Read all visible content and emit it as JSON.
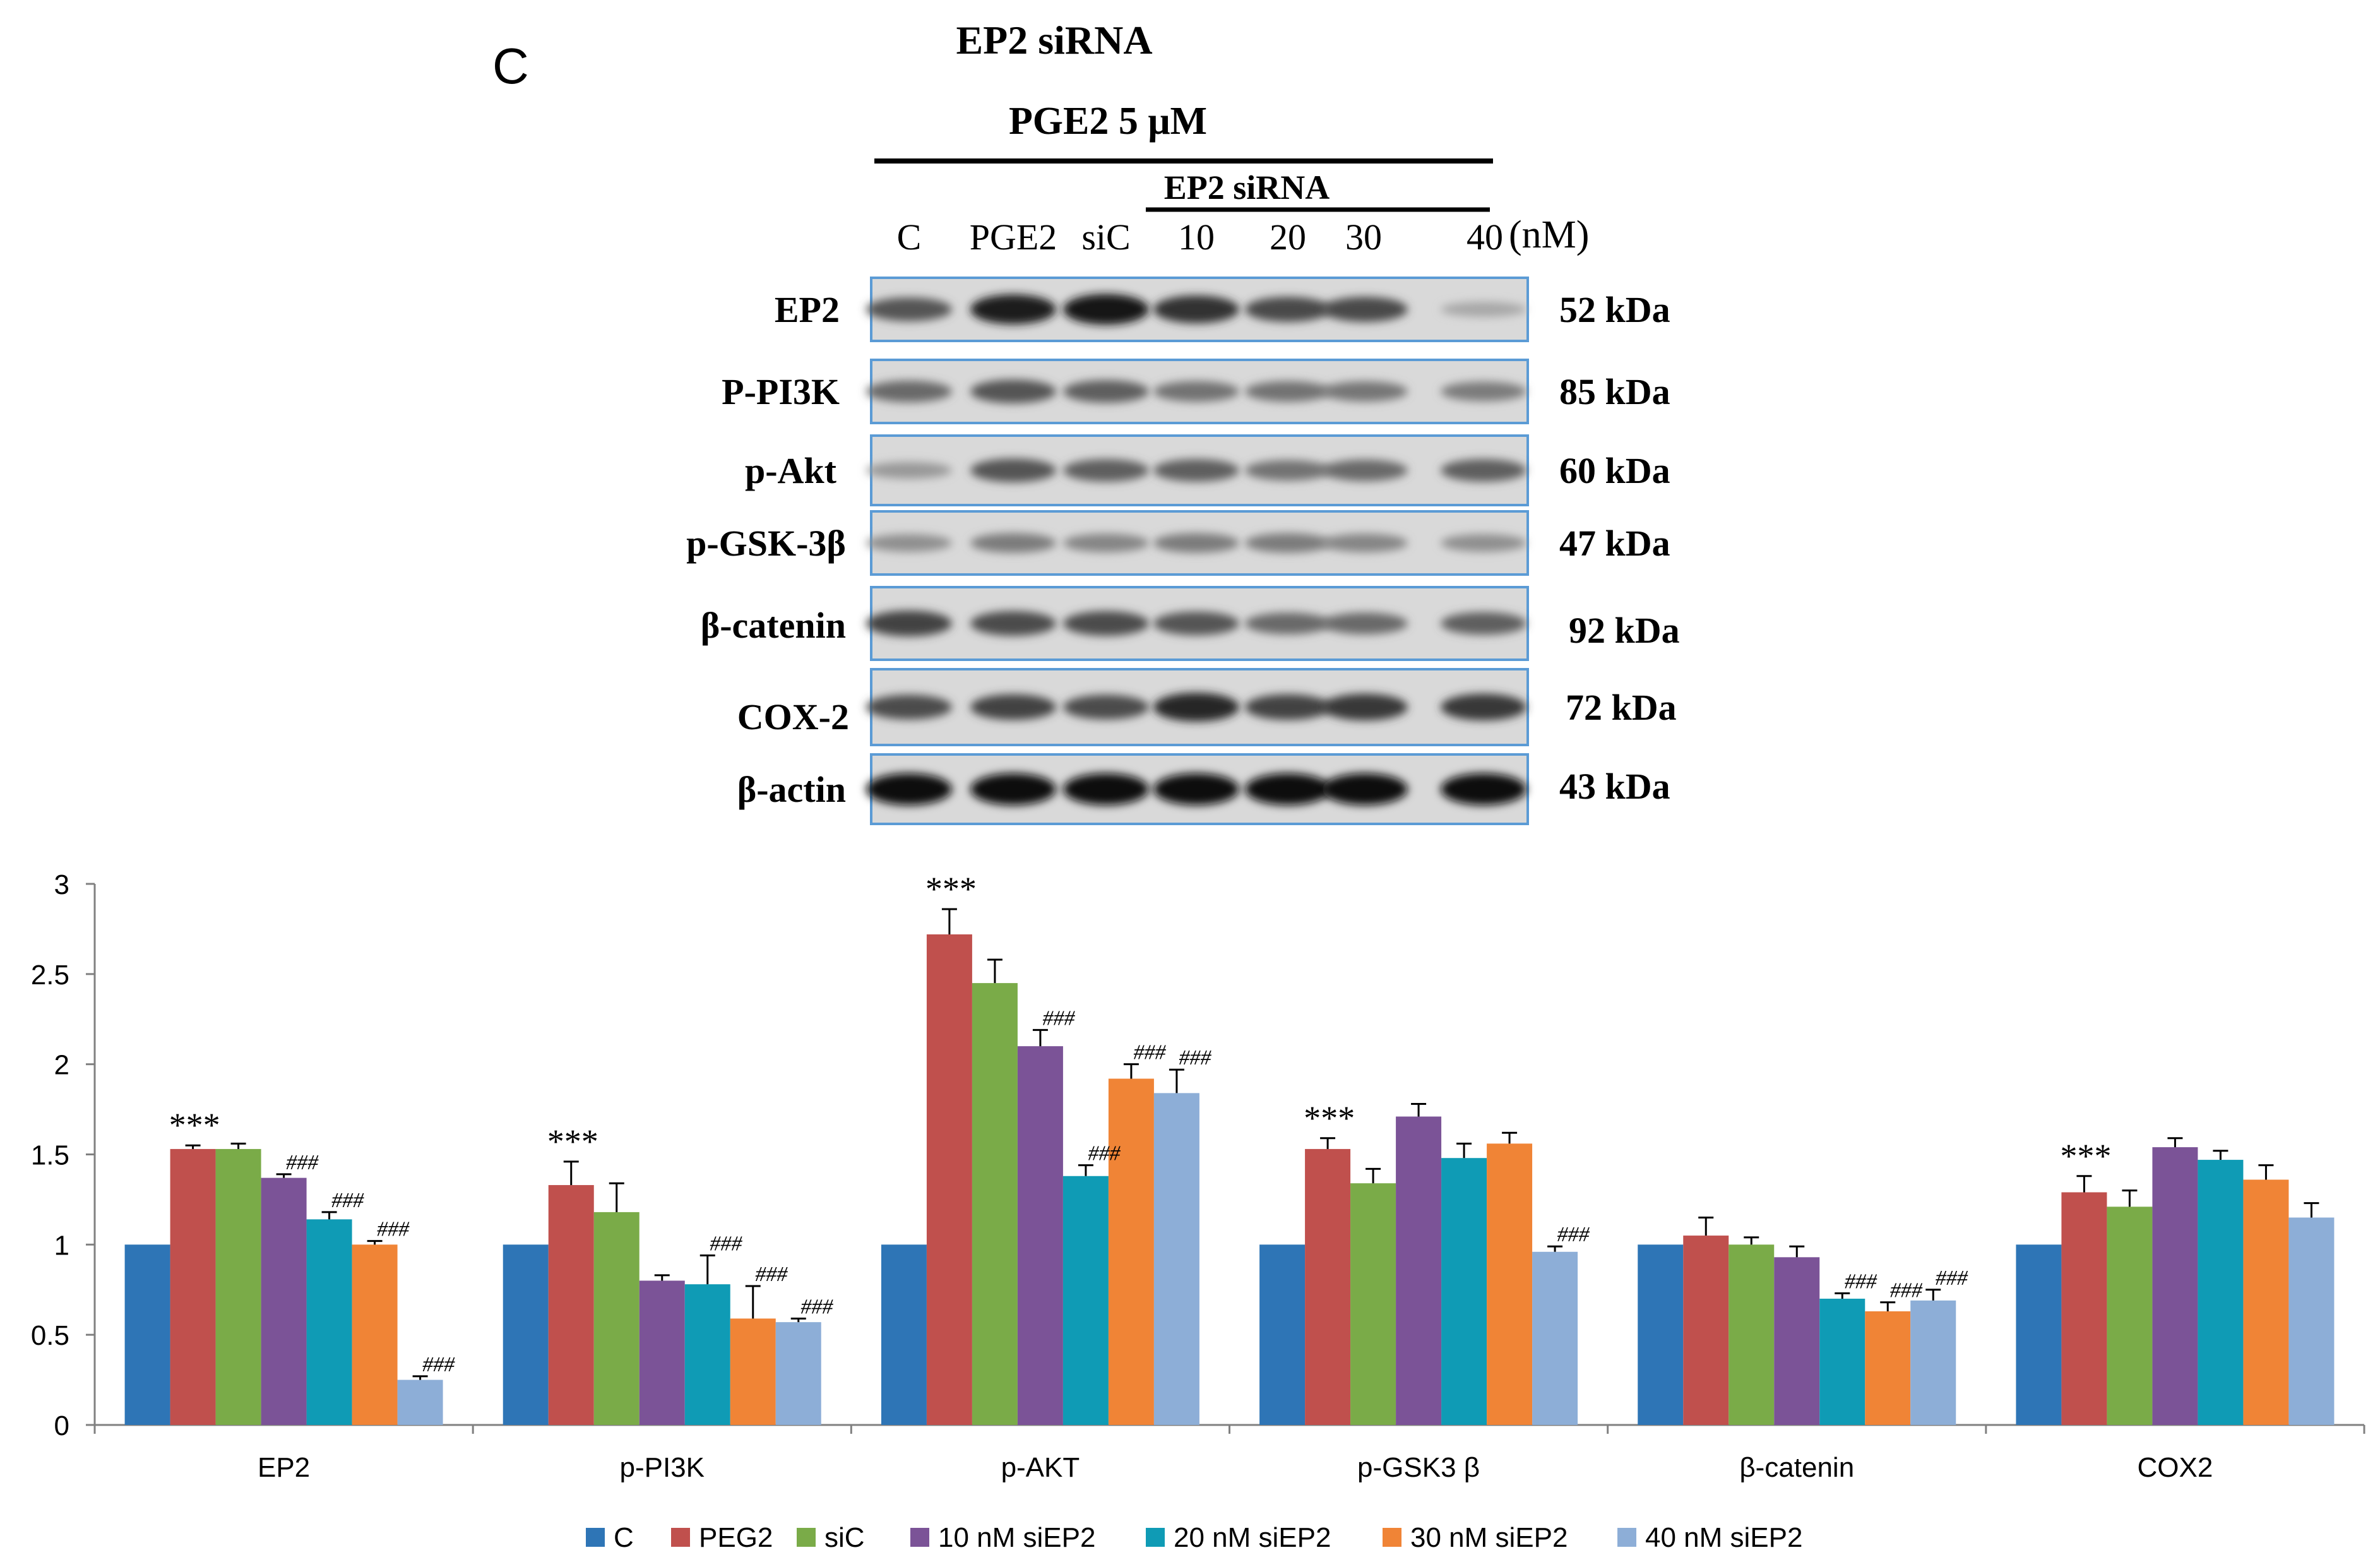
{
  "figure": {
    "panel_letter": "C",
    "title": "EP2 siRNA",
    "treatment_label": "PGE2 5 μM",
    "sirna_label": "EP2 siRNA",
    "unit_label": "(nM)",
    "lanes": [
      "C",
      "PGE2",
      "siC",
      "10",
      "20",
      "30",
      "40"
    ],
    "blots": [
      {
        "protein": "EP2",
        "size": "52 kDa",
        "intensity": [
          0.55,
          0.85,
          0.9,
          0.75,
          0.62,
          0.62,
          0.12
        ]
      },
      {
        "protein": "P-PI3K",
        "size": "85 kDa",
        "intensity": [
          0.45,
          0.55,
          0.5,
          0.4,
          0.4,
          0.38,
          0.35
        ]
      },
      {
        "protein": "p-Akt",
        "size": "60 kDa",
        "intensity": [
          0.2,
          0.55,
          0.5,
          0.5,
          0.4,
          0.45,
          0.5
        ]
      },
      {
        "protein": "p-GSK-3β",
        "size": "47 kDa",
        "intensity": [
          0.25,
          0.35,
          0.3,
          0.35,
          0.35,
          0.3,
          0.25
        ]
      },
      {
        "protein": "β-catenin",
        "size": "92 kDa",
        "intensity": [
          0.65,
          0.6,
          0.6,
          0.55,
          0.45,
          0.45,
          0.5
        ]
      },
      {
        "protein": "COX-2",
        "size": "72 kDa",
        "intensity": [
          0.6,
          0.65,
          0.6,
          0.8,
          0.65,
          0.7,
          0.7
        ]
      },
      {
        "protein": "β-actin",
        "size": "43 kDa",
        "intensity": [
          0.95,
          0.95,
          0.95,
          0.95,
          0.95,
          0.95,
          0.95
        ]
      }
    ]
  },
  "chart_data": {
    "type": "bar",
    "categories": [
      "EP2",
      "p-PI3K",
      "p-AKT",
      "p-GSK3 β",
      "β-catenin",
      "COX2"
    ],
    "ylim": [
      0,
      3
    ],
    "yticks": [
      "0",
      "0.5",
      "1",
      "1.5",
      "2",
      "2.5",
      "3"
    ],
    "grid": false,
    "legend_position": "bottom",
    "series": [
      {
        "name": "C",
        "color": "#2e75b6",
        "values": [
          1.0,
          1.0,
          1.0,
          1.0,
          1.0,
          1.0
        ],
        "errors": [
          0,
          0,
          0,
          0,
          0,
          0
        ],
        "annotations": [
          "",
          "",
          "",
          "",
          "",
          ""
        ]
      },
      {
        "name": "PEG2",
        "color": "#c0504d",
        "values": [
          1.53,
          1.33,
          2.72,
          1.53,
          1.05,
          1.29
        ],
        "errors": [
          0.02,
          0.13,
          0.14,
          0.06,
          0.1,
          0.09
        ],
        "annotations": [
          "***",
          "***",
          "***",
          "***",
          "",
          "***"
        ]
      },
      {
        "name": "siC",
        "color": "#7aab48",
        "values": [
          1.53,
          1.18,
          2.45,
          1.34,
          1.0,
          1.21
        ],
        "errors": [
          0.03,
          0.16,
          0.13,
          0.08,
          0.04,
          0.09
        ],
        "annotations": [
          "",
          "",
          "",
          "",
          "",
          ""
        ]
      },
      {
        "name": "10 nM siEP2",
        "color": "#7b5397",
        "values": [
          1.37,
          0.8,
          2.1,
          1.71,
          0.93,
          1.54
        ],
        "errors": [
          0.02,
          0.03,
          0.09,
          0.07,
          0.06,
          0.05
        ],
        "annotations": [
          "###",
          "",
          "###",
          "",
          "",
          ""
        ]
      },
      {
        "name": "20 nM siEP2",
        "color": "#0f9bb5",
        "values": [
          1.14,
          0.78,
          1.38,
          1.48,
          0.7,
          1.47
        ],
        "errors": [
          0.04,
          0.16,
          0.06,
          0.08,
          0.03,
          0.05
        ],
        "annotations": [
          "###",
          "###",
          "###",
          "",
          "###",
          ""
        ]
      },
      {
        "name": "30 nM siEP2",
        "color": "#f08436",
        "values": [
          1.0,
          0.59,
          1.92,
          1.56,
          0.63,
          1.36
        ],
        "errors": [
          0.02,
          0.18,
          0.08,
          0.06,
          0.05,
          0.08
        ],
        "annotations": [
          "###",
          "###",
          "###",
          "",
          "###",
          ""
        ]
      },
      {
        "name": "40 nM siEP2",
        "color": "#8daed7",
        "values": [
          0.25,
          0.57,
          1.84,
          0.96,
          0.69,
          1.15
        ],
        "errors": [
          0.02,
          0.02,
          0.13,
          0.03,
          0.06,
          0.08
        ],
        "annotations": [
          "###",
          "###",
          "###",
          "###",
          "###",
          ""
        ]
      }
    ]
  }
}
